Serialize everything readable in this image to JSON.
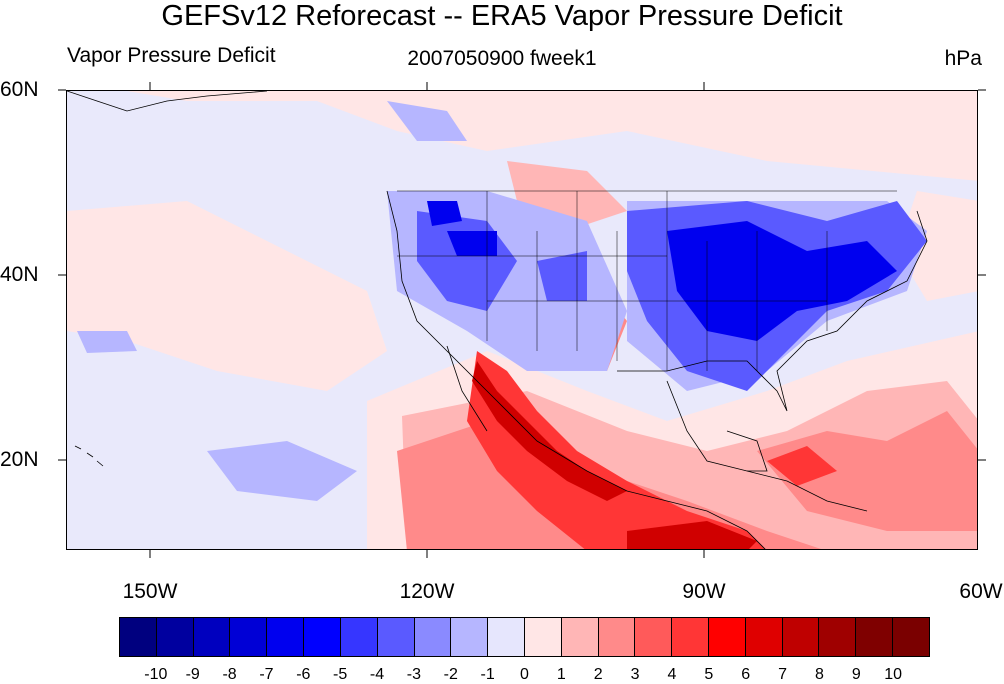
{
  "title": "GEFSv12 Reforecast -- ERA5 Vapor Pressure Deficit",
  "left_subtitle": "Vapor Pressure Deficit",
  "center_subtitle": "2007050900 fweek1",
  "units": "hPa",
  "map": {
    "projection": "cylindrical-equidistant",
    "lon_range": [
      -159,
      -60
    ],
    "lat_range": [
      10,
      60
    ],
    "lat_ticks": [
      "60N",
      "40N",
      "20N"
    ],
    "lon_ticks": [
      "150W",
      "120W",
      "90W",
      "60W"
    ],
    "background_color": "#e9e9fb"
  },
  "colorbar": {
    "labels": [
      "-10",
      "-9",
      "-8",
      "-7",
      "-6",
      "-5",
      "-4",
      "-3",
      "-2",
      "-1",
      "0",
      "1",
      "2",
      "3",
      "4",
      "5",
      "6",
      "7",
      "8",
      "9",
      "10"
    ],
    "colors": [
      "#00007f",
      "#00009f",
      "#0000bf",
      "#0000d6",
      "#0000ef",
      "#0000ff",
      "#3636ff",
      "#5a5aff",
      "#8a8aff",
      "#b6b6ff",
      "#e6e6fd",
      "#ffe6e6",
      "#ffb6b6",
      "#ff8a8a",
      "#ff5a5a",
      "#ff3636",
      "#ff0000",
      "#df0000",
      "#bf0000",
      "#9f0000",
      "#7f0000",
      "#7a0000"
    ]
  }
}
